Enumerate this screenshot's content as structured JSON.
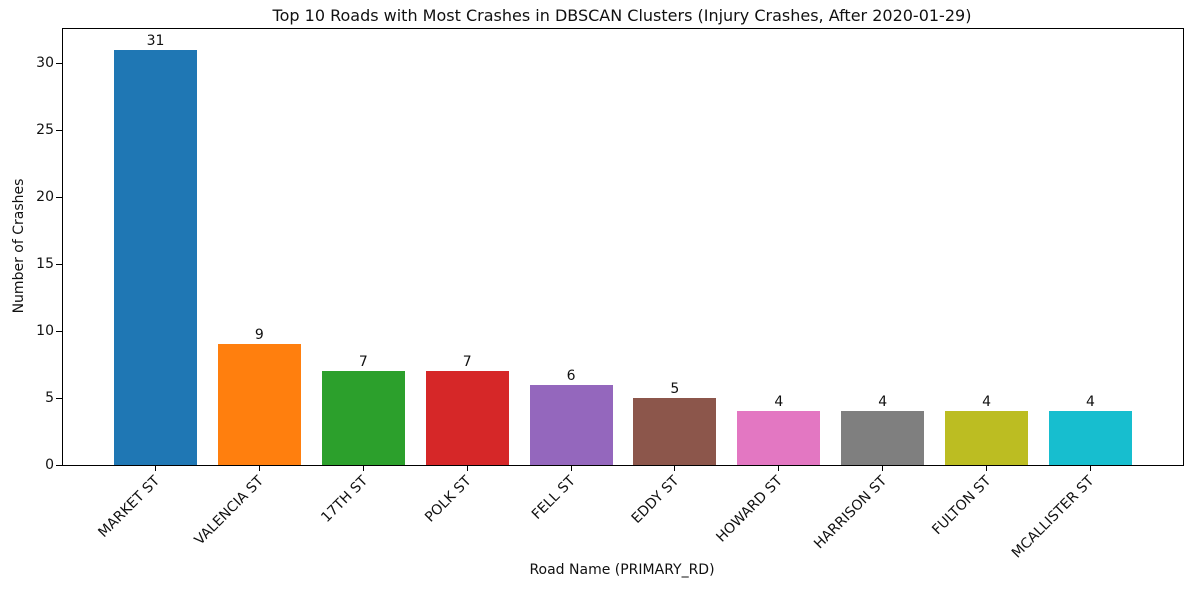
{
  "chart_data": {
    "type": "bar",
    "title": "Top 10 Roads with Most Crashes in DBSCAN Clusters (Injury Crashes, After 2020-01-29)",
    "xlabel": "Road Name (PRIMARY_RD)",
    "ylabel": "Number of Crashes",
    "categories": [
      "MARKET ST",
      "VALENCIA ST",
      "17TH ST",
      "POLK ST",
      "FELL ST",
      "EDDY ST",
      "HOWARD ST",
      "HARRISON ST",
      "FULTON ST",
      "MCALLISTER ST"
    ],
    "values": [
      31,
      9,
      7,
      7,
      6,
      5,
      4,
      4,
      4,
      4
    ],
    "bar_colors": [
      "#1f77b4",
      "#ff7f0e",
      "#2ca02c",
      "#d62728",
      "#9467bd",
      "#8c564b",
      "#e377c2",
      "#7f7f7f",
      "#bcbd22",
      "#17becf"
    ],
    "yticks": [
      0,
      5,
      10,
      15,
      20,
      25,
      30
    ],
    "ylim": [
      0,
      32.55
    ],
    "grid": false,
    "legend": "none",
    "background_color": "#ffffff",
    "axis_color": "#000000",
    "text_color": "#111111"
  }
}
